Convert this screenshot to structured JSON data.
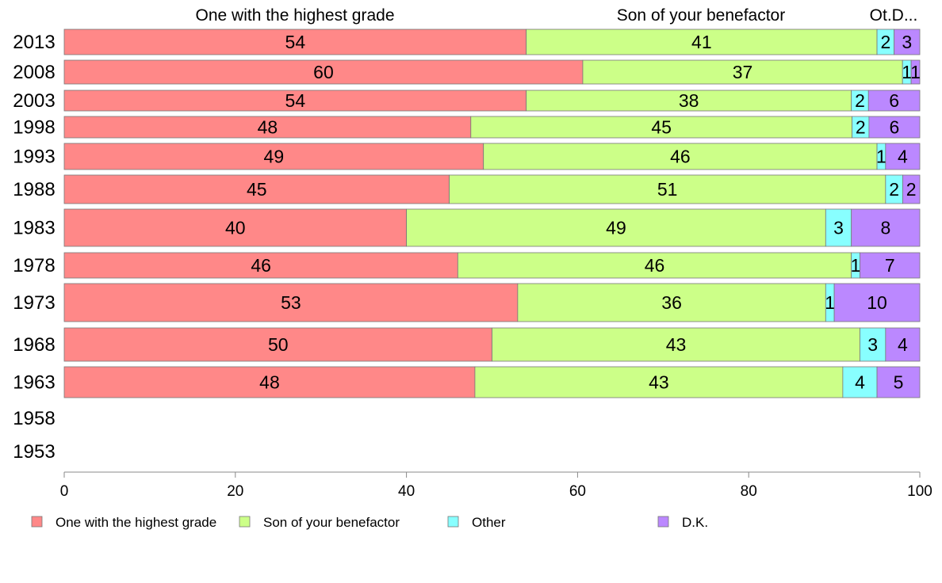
{
  "chart_data": {
    "type": "bar",
    "orientation": "horizontal",
    "stacked": true,
    "top_labels": [
      "One with the highest grade",
      "Son of your benefactor",
      "Ot.D..."
    ],
    "categories": [
      "2013",
      "2008",
      "2003",
      "1998",
      "1993",
      "1988",
      "1983",
      "1978",
      "1973",
      "1968",
      "1963",
      "1958",
      "1953"
    ],
    "series": [
      {
        "name": "One with the highest grade",
        "color": "#ff8888",
        "values": [
          54,
          60,
          54,
          48,
          49,
          45,
          40,
          46,
          53,
          50,
          48,
          null,
          null
        ],
        "labels": [
          "54",
          "60",
          "54",
          "48",
          "49",
          "45",
          "40",
          "46",
          "53",
          "50",
          "48",
          "",
          ""
        ]
      },
      {
        "name": "Son of your benefactor",
        "color": "#ccff88",
        "values": [
          41,
          37,
          38,
          45,
          46,
          51,
          49,
          46,
          36,
          43,
          43,
          null,
          null
        ],
        "labels": [
          "41",
          "37",
          "38",
          "45",
          "46",
          "51",
          "49",
          "46",
          "36",
          "43",
          "43",
          "",
          ""
        ]
      },
      {
        "name": "Other",
        "color": "#88ffff",
        "values": [
          2,
          1,
          2,
          2,
          1,
          2,
          3,
          1,
          1,
          3,
          4,
          null,
          null
        ],
        "labels": [
          "2",
          "1",
          "2",
          "2",
          "1",
          "2",
          "3",
          "1",
          "1",
          "3",
          "4",
          "",
          ""
        ]
      },
      {
        "name": "D.K.",
        "color": "#bb88ff",
        "values": [
          3,
          1,
          6,
          6,
          4,
          2,
          8,
          7,
          10,
          4,
          5,
          null,
          null
        ],
        "labels": [
          "3",
          "1",
          "6",
          "6",
          "4",
          "2",
          "8",
          "7",
          "10",
          "4",
          "5",
          "",
          ""
        ]
      }
    ],
    "xlim": [
      0,
      100
    ],
    "xticks": [
      "0",
      "20",
      "40",
      "60",
      "80",
      "100"
    ],
    "grid": false,
    "legend_position": "bottom"
  }
}
